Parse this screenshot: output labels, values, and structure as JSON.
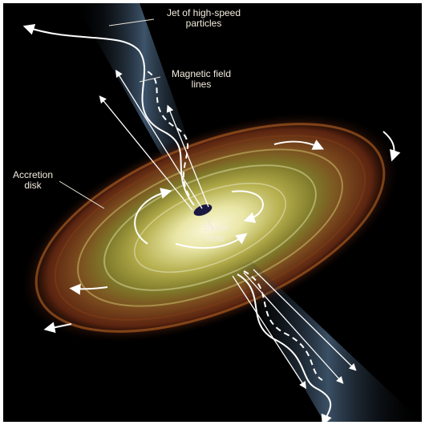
{
  "labels": {
    "jet": "Jet of high-speed\nparticles",
    "magnetic": "Magnetic field\nlines",
    "accretion": "Accretion\ndisk",
    "black_hole": "Black\nhole"
  },
  "colors": {
    "background": "#000000",
    "disk_core": "#f4f0c2",
    "disk_mid": "#b7b24a",
    "disk_outer": "#8a4a1c",
    "jet": "#6f8fb0",
    "field_lines": "#ffffff",
    "black_hole": "#1a1840"
  }
}
